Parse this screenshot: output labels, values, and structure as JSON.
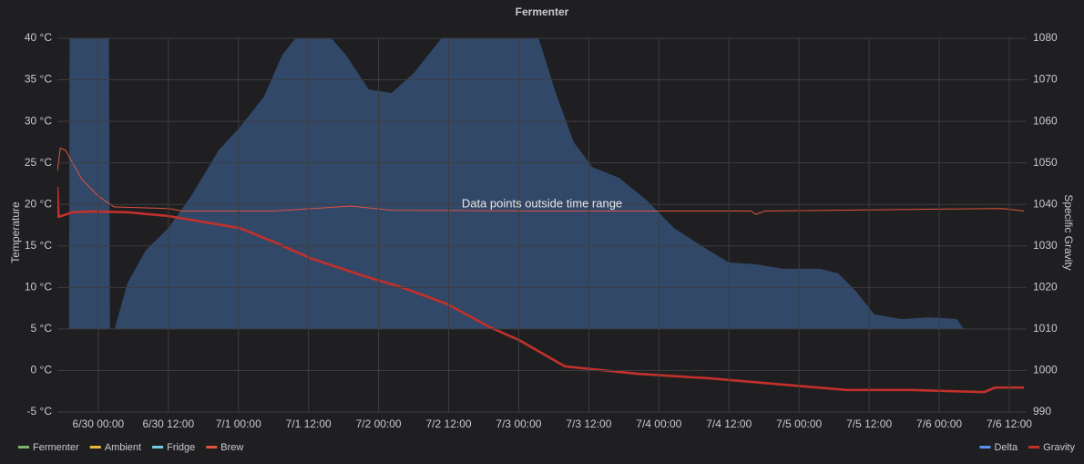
{
  "chart_data": {
    "type": "line",
    "title": "Fermenter",
    "y_label": "Temperature",
    "y2_label": "Specific Gravity",
    "annotation": "Data points outside time range",
    "grid": true,
    "xlim": [
      -7,
      158.5
    ],
    "xticks": [
      {
        "value": 0,
        "label": "6/30 00:00"
      },
      {
        "value": 12,
        "label": "6/30 12:00"
      },
      {
        "value": 24,
        "label": "7/1 00:00"
      },
      {
        "value": 36,
        "label": "7/1 12:00"
      },
      {
        "value": 48,
        "label": "7/2 00:00"
      },
      {
        "value": 60,
        "label": "7/2 12:00"
      },
      {
        "value": 72,
        "label": "7/3 00:00"
      },
      {
        "value": 84,
        "label": "7/3 12:00"
      },
      {
        "value": 96,
        "label": "7/4 00:00"
      },
      {
        "value": 108,
        "label": "7/4 12:00"
      },
      {
        "value": 120,
        "label": "7/5 00:00"
      },
      {
        "value": 132,
        "label": "7/5 12:00"
      },
      {
        "value": 144,
        "label": "7/6 00:00"
      },
      {
        "value": 156,
        "label": "7/6 12:00"
      }
    ],
    "ylim": [
      -5,
      40
    ],
    "yticks": [
      {
        "value": -5,
        "label": "-5 °C"
      },
      {
        "value": 0,
        "label": "0 °C"
      },
      {
        "value": 5,
        "label": "5 °C"
      },
      {
        "value": 10,
        "label": "10 °C"
      },
      {
        "value": 15,
        "label": "15 °C"
      },
      {
        "value": 20,
        "label": "20 °C"
      },
      {
        "value": 25,
        "label": "25 °C"
      },
      {
        "value": 30,
        "label": "30 °C"
      },
      {
        "value": 35,
        "label": "35 °C"
      },
      {
        "value": 40,
        "label": "40 °C"
      }
    ],
    "y2lim": [
      990,
      1080
    ],
    "y2ticks": [
      990,
      1000,
      1010,
      1020,
      1030,
      1040,
      1050,
      1060,
      1070,
      1080
    ],
    "series": [
      {
        "name": "Fermenter",
        "color": "#7eb26d",
        "axis": "y",
        "x": [],
        "values": []
      },
      {
        "name": "Ambient",
        "color": "#eab839",
        "axis": "y",
        "x": [],
        "values": []
      },
      {
        "name": "Fridge",
        "color": "#6ed0e0",
        "axis": "y",
        "x": [],
        "values": []
      },
      {
        "name": "Brew",
        "color": "#e0533f",
        "axis": "y",
        "x": [
          -7,
          -6.5,
          -5.6,
          -4.4,
          -2.8,
          0,
          2.7,
          12,
          14.4,
          30,
          43.2,
          50.2,
          76.7,
          111.8,
          112.6,
          114.2,
          139.2,
          154.8,
          158.5
        ],
        "values": [
          24,
          26.8,
          26.5,
          25,
          23,
          21,
          19.7,
          19.5,
          19.2,
          19.2,
          19.8,
          19.3,
          19.2,
          19.2,
          18.8,
          19.2,
          19.4,
          19.5,
          19.2
        ]
      },
      {
        "name": "Delta",
        "color": "#5794f2",
        "axis": "y2",
        "fill": true,
        "x": [
          -5,
          -4.9,
          1.8,
          2,
          2.8,
          5,
          8.1,
          12,
          15.9,
          20.6,
          24.2,
          28.4,
          31.5,
          34.6,
          39.3,
          42.4,
          46.3,
          50.2,
          54.1,
          59.6,
          75.2,
          78.3,
          81.4,
          84.6,
          89.2,
          93.9,
          98.6,
          103.3,
          108,
          112.6,
          117.3,
          123.6,
          126.7,
          129.8,
          132.9,
          137.6,
          142.3,
          147,
          148.2
        ],
        "values": [
          1010,
          1090,
          1090,
          1010,
          1010,
          1021,
          1028.9,
          1034.3,
          1042,
          1053,
          1058.5,
          1066,
          1076,
          1081.5,
          1081,
          1076,
          1067.7,
          1066.8,
          1071.7,
          1081.5,
          1081,
          1067,
          1055,
          1049,
          1046.4,
          1041,
          1034.3,
          1030,
          1026,
          1025.6,
          1024.5,
          1024.5,
          1023.4,
          1019,
          1013.5,
          1012.4,
          1012.8,
          1012.4,
          1010
        ]
      },
      {
        "name": "Gravity",
        "color": "#c4302b",
        "axis": "y2",
        "x": [
          -7,
          -6.8,
          -4.4,
          -1.2,
          5,
          12,
          24.2,
          30,
          36.2,
          45.6,
          51.8,
          59.6,
          67.4,
          72.1,
          79.9,
          92.4,
          104.8,
          117.3,
          128.2,
          139.2,
          151.7,
          153.6,
          158.5
        ],
        "values": [
          1044.2,
          1037,
          1038.1,
          1038.3,
          1038.1,
          1037.2,
          1034.3,
          1031,
          1027.1,
          1022.7,
          1020.1,
          1016.1,
          1010.2,
          1007.3,
          1001,
          999.2,
          998.1,
          996.6,
          995.3,
          995.3,
          994.8,
          995.9,
          995.9
        ]
      }
    ]
  }
}
